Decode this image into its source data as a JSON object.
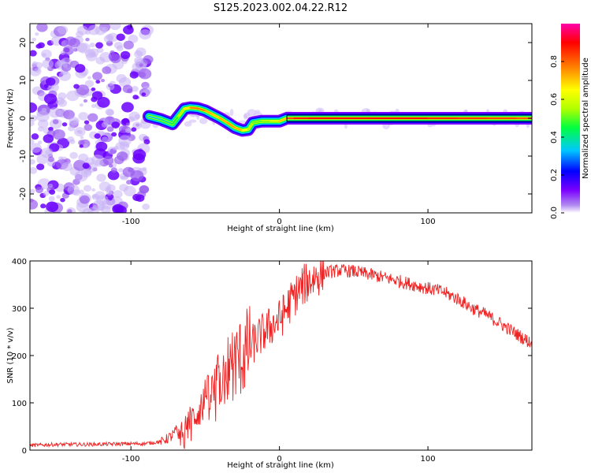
{
  "title": "S125.2023.002.04.22.R12",
  "chart_data": [
    {
      "type": "heatmap",
      "xlabel": "Height of straight line (km)",
      "ylabel": "Frequency (Hz)",
      "xlim": [
        -168,
        170
      ],
      "ylim": [
        -25,
        25
      ],
      "xticks": [
        -100,
        0,
        100
      ],
      "yticks": [
        -20,
        -10,
        0,
        10,
        20
      ],
      "colorbar": {
        "label": "Normalized spectral amplitude",
        "range": [
          0,
          1
        ],
        "ticks": [
          0.0,
          0.2,
          0.4,
          0.6,
          0.8
        ],
        "tick_labels": [
          "0.0",
          "0.2",
          "0.4",
          "0.6",
          "0.8"
        ],
        "colors": [
          "#ffffff",
          "#b18cf0",
          "#7a00ff",
          "#0000ff",
          "#00c8ff",
          "#00ff40",
          "#b0ff00",
          "#ffff00",
          "#ff8000",
          "#ff0000",
          "#ff00aa"
        ]
      },
      "noise_region_x": [
        -168,
        -88
      ],
      "ridge": {
        "x": [
          -88,
          -80,
          -72,
          -68,
          -64,
          -60,
          -55,
          -50,
          -45,
          -40,
          -35,
          -30,
          -25,
          -21,
          -18,
          -12,
          -6,
          0,
          5,
          10,
          20,
          40,
          60,
          80,
          100,
          120,
          140,
          160,
          170
        ],
        "y": [
          0.5,
          -0.3,
          -1.5,
          0.5,
          2.5,
          2.8,
          2.6,
          2.0,
          1.0,
          0.0,
          -1.2,
          -2.5,
          -3.2,
          -3.0,
          -1.2,
          -0.8,
          -0.8,
          -0.8,
          0.0,
          0.0,
          0.0,
          0.0,
          0.0,
          0.0,
          0.0,
          0.0,
          0.0,
          0.0,
          0.0
        ],
        "amplitude": [
          0.3,
          0.4,
          0.4,
          0.5,
          0.6,
          0.75,
          0.8,
          0.75,
          0.7,
          0.7,
          0.75,
          0.75,
          0.7,
          0.6,
          0.5,
          0.5,
          0.55,
          0.6,
          0.8,
          0.85,
          0.9,
          0.9,
          0.88,
          0.9,
          0.88,
          0.85,
          0.85,
          0.82,
          0.8
        ]
      }
    },
    {
      "type": "line",
      "xlabel": "Height of straight line (km)",
      "ylabel": "SNR (10 * v/v)",
      "xlim": [
        -168,
        170
      ],
      "ylim": [
        0,
        400
      ],
      "xticks": [
        -100,
        0,
        100
      ],
      "yticks": [
        0,
        100,
        200,
        300,
        400
      ],
      "line_color": "#ee2222",
      "x": [
        -168,
        -150,
        -130,
        -110,
        -90,
        -80,
        -75,
        -70,
        -65,
        -60,
        -55,
        -50,
        -45,
        -40,
        -35,
        -30,
        -25,
        -20,
        -15,
        -10,
        -5,
        0,
        5,
        10,
        15,
        20,
        25,
        30,
        40,
        50,
        60,
        70,
        80,
        90,
        100,
        110,
        120,
        130,
        140,
        150,
        160,
        170
      ],
      "y": [
        10,
        12,
        12,
        13,
        14,
        18,
        25,
        35,
        50,
        65,
        80,
        105,
        120,
        150,
        170,
        185,
        200,
        215,
        235,
        250,
        265,
        275,
        300,
        325,
        345,
        358,
        368,
        375,
        380,
        378,
        372,
        365,
        358,
        350,
        342,
        335,
        320,
        300,
        285,
        265,
        245,
        225
      ]
    }
  ]
}
